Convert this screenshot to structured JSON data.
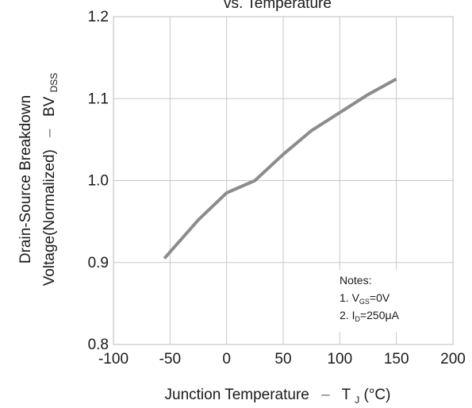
{
  "chart_data": {
    "type": "line",
    "title": "vs. Temperature",
    "xlabel": {
      "main": "Junction Temperature",
      "dash": "–",
      "sym": "T",
      "sub": "J",
      "unit": "(°C)"
    },
    "ylabel": {
      "line1": "Drain-Source Breakdown",
      "line2_main": "Voltage(Normalized)",
      "line2_dash": "–",
      "line2_sym": "BV",
      "line2_sub": "DSS"
    },
    "xlim": [
      -100,
      200
    ],
    "ylim": [
      0.8,
      1.2
    ],
    "x_ticks": [
      "-100",
      "-50",
      "0",
      "50",
      "100",
      "150",
      "200"
    ],
    "x_tick_values": [
      -100,
      -50,
      0,
      50,
      100,
      150,
      200
    ],
    "y_ticks": [
      "0.8",
      "0.9",
      "1.0",
      "1.1",
      "1.2"
    ],
    "y_tick_values": [
      0.8,
      0.9,
      1.0,
      1.1,
      1.2
    ],
    "grid": true,
    "line_color": "#8c8c8c",
    "grid_color": "#c8c8c8",
    "series": [
      {
        "x": [
          -55,
          -25,
          0,
          25,
          50,
          75,
          100,
          125,
          150
        ],
        "y": [
          0.905,
          0.952,
          0.985,
          1.0,
          1.032,
          1.061,
          1.083,
          1.105,
          1.124
        ]
      }
    ],
    "notes": {
      "title": "Notes:",
      "n1_pre": "1. V",
      "n1_sub": "GS",
      "n1_post": "=0V",
      "n2_pre": "2. I",
      "n2_sub": "D",
      "n2_post": "=250μA"
    }
  }
}
